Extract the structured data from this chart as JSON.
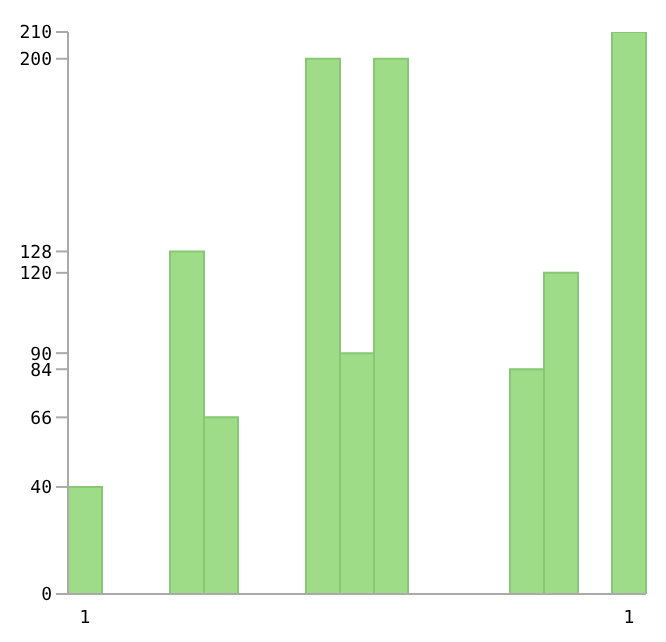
{
  "chart_data": {
    "type": "bar",
    "categories": [
      "1",
      null,
      null,
      null,
      null,
      null,
      null,
      null,
      null,
      null,
      null,
      null,
      null,
      null,
      null,
      null,
      "1"
    ],
    "values": [
      40,
      0,
      0,
      128,
      66,
      0,
      0,
      200,
      90,
      200,
      0,
      0,
      0,
      84,
      120,
      0,
      210
    ],
    "color": "#9edc87",
    "ylim": [
      0,
      210
    ],
    "yticks": [
      0,
      40,
      66,
      84,
      90,
      120,
      128,
      200,
      210
    ],
    "grid": false
  }
}
